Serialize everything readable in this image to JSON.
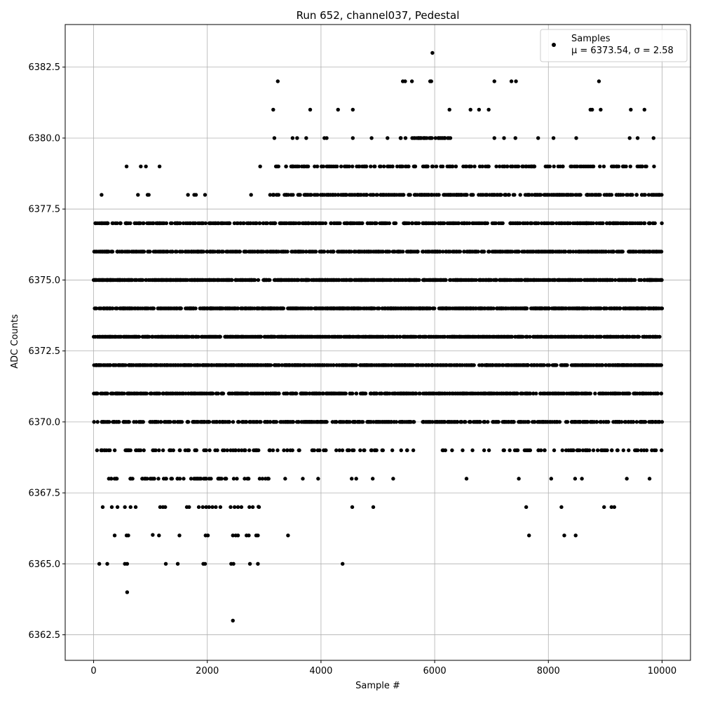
{
  "chart_data": {
    "type": "scatter",
    "title": "Run 652, channel037, Pedestal",
    "xlabel": "Sample #",
    "ylabel": "ADC Counts",
    "xlim": [
      -500,
      10500
    ],
    "ylim": [
      6361.6,
      6384.0
    ],
    "x_ticks": [
      0,
      2000,
      4000,
      6000,
      8000,
      10000
    ],
    "x_tick_labels": [
      "0",
      "2000",
      "4000",
      "6000",
      "8000",
      "10000"
    ],
    "y_ticks": [
      6362.5,
      6365.0,
      6367.5,
      6370.0,
      6372.5,
      6375.0,
      6377.5,
      6380.0,
      6382.5
    ],
    "y_tick_labels": [
      "6362.5",
      "6365.0",
      "6367.5",
      "6370.0",
      "6372.5",
      "6375.0",
      "6377.5",
      "6380.0",
      "6382.5"
    ],
    "grid": true,
    "legend_position": "top-right",
    "marker_color": "#000000",
    "series": [
      {
        "name": "Samples",
        "stats": {
          "label": "μ = 6373.54, σ = 2.58",
          "mu": 6373.54,
          "sigma": 2.58
        },
        "points": [
          [
            2450,
            6363
          ],
          [
            590,
            6364
          ],
          [
            100,
            6365
          ],
          [
            240,
            6365
          ],
          [
            550,
            6365
          ],
          [
            590,
            6365
          ],
          [
            1270,
            6365
          ],
          [
            1480,
            6365
          ],
          [
            1930,
            6365
          ],
          [
            1960,
            6365
          ],
          [
            2420,
            6365
          ],
          [
            2460,
            6365
          ],
          [
            2750,
            6365
          ],
          [
            2890,
            6365
          ],
          [
            4380,
            6365
          ],
          [
            370,
            6366
          ],
          [
            580,
            6366
          ],
          [
            610,
            6366
          ],
          [
            1150,
            6366
          ],
          [
            1510,
            6366
          ],
          [
            1970,
            6366
          ],
          [
            2010,
            6366
          ],
          [
            2450,
            6366
          ],
          [
            2500,
            6366
          ],
          [
            2540,
            6366
          ],
          [
            2690,
            6366
          ],
          [
            2730,
            6366
          ],
          [
            2860,
            6366
          ],
          [
            2890,
            6366
          ],
          [
            3420,
            6366
          ],
          [
            7660,
            6366
          ],
          [
            8280,
            6366
          ],
          [
            8480,
            6366
          ],
          [
            160,
            6367
          ],
          [
            320,
            6367
          ],
          [
            420,
            6367
          ],
          [
            550,
            6367
          ],
          [
            650,
            6367
          ],
          [
            740,
            6367
          ],
          [
            1170,
            6367
          ],
          [
            1220,
            6367
          ],
          [
            1260,
            6367
          ],
          [
            1640,
            6367
          ],
          [
            1680,
            6367
          ],
          [
            1850,
            6367
          ],
          [
            1920,
            6367
          ],
          [
            1980,
            6367
          ],
          [
            2030,
            6367
          ],
          [
            2090,
            6367
          ],
          [
            2150,
            6367
          ],
          [
            2230,
            6367
          ],
          [
            2410,
            6367
          ],
          [
            2480,
            6367
          ],
          [
            2540,
            6367
          ],
          [
            2600,
            6367
          ],
          [
            2740,
            6367
          ],
          [
            2800,
            6367
          ],
          [
            2910,
            6367
          ],
          [
            4550,
            6367
          ],
          [
            4920,
            6367
          ],
          [
            7610,
            6367
          ],
          [
            8230,
            6367
          ],
          [
            8980,
            6367
          ],
          [
            9110,
            6367
          ],
          [
            9160,
            6367
          ],
          [
            1040,
            6366.02
          ],
          [
            2900,
            6367.01
          ],
          [
            6560,
            6368
          ],
          [
            7480,
            6368
          ],
          [
            8050,
            6368
          ],
          [
            8470,
            6368
          ],
          [
            8590,
            6368
          ],
          [
            9380,
            6368
          ],
          [
            9780,
            6368
          ],
          [
            3370,
            6368
          ],
          [
            3680,
            6368
          ],
          [
            3950,
            6368
          ],
          [
            4540,
            6368
          ],
          [
            4620,
            6368
          ],
          [
            4910,
            6368
          ],
          [
            5270,
            6368
          ],
          [
            8460,
            6370
          ],
          [
            6870,
            6369
          ],
          [
            7210,
            6369
          ],
          [
            7320,
            6369
          ],
          [
            9220,
            6369
          ],
          [
            9820,
            6369
          ],
          [
            140,
            6378
          ],
          [
            1660,
            6378
          ],
          [
            1770,
            6378
          ],
          [
            1800,
            6378
          ],
          [
            1960,
            6378
          ],
          [
            780,
            6378
          ],
          [
            950,
            6378
          ],
          [
            970,
            6378
          ],
          [
            2770,
            6378
          ],
          [
            580,
            6379
          ],
          [
            830,
            6379
          ],
          [
            920,
            6379
          ],
          [
            1160,
            6379
          ],
          [
            2930,
            6379
          ],
          [
            3180,
            6380
          ],
          [
            3500,
            6380
          ],
          [
            3580,
            6380
          ],
          [
            3740,
            6380
          ],
          [
            4060,
            6380
          ],
          [
            4100,
            6380
          ],
          [
            4560,
            6380
          ],
          [
            4890,
            6380
          ],
          [
            5170,
            6380
          ],
          [
            7050,
            6380
          ],
          [
            7220,
            6380
          ],
          [
            7420,
            6380
          ],
          [
            7820,
            6380
          ],
          [
            8090,
            6380
          ],
          [
            8490,
            6380
          ],
          [
            9430,
            6380
          ],
          [
            9570,
            6380
          ],
          [
            9850,
            6380
          ],
          [
            3160,
            6381
          ],
          [
            3810,
            6381
          ],
          [
            4300,
            6381
          ],
          [
            4560,
            6381
          ],
          [
            6260,
            6381
          ],
          [
            6630,
            6381
          ],
          [
            6780,
            6381
          ],
          [
            6950,
            6381
          ],
          [
            8740,
            6381
          ],
          [
            8770,
            6381
          ],
          [
            8920,
            6381
          ],
          [
            9450,
            6381
          ],
          [
            9690,
            6381
          ],
          [
            3240,
            6382
          ],
          [
            5440,
            6382
          ],
          [
            5480,
            6382
          ],
          [
            5600,
            6382
          ],
          [
            5920,
            6382
          ],
          [
            5940,
            6382
          ],
          [
            7050,
            6382
          ],
          [
            7350,
            6382
          ],
          [
            7430,
            6382
          ],
          [
            8890,
            6382
          ],
          [
            5960,
            6383
          ]
        ]
      }
    ]
  }
}
